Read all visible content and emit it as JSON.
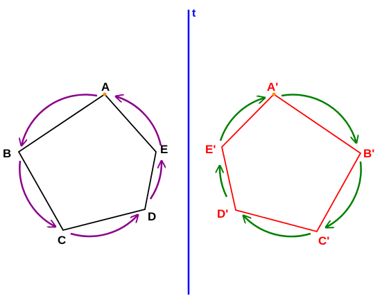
{
  "mirror_line": {
    "label": "t",
    "color": "#0000ff"
  },
  "original": {
    "color": "#000000",
    "arrow_color": "#8b008b",
    "labels": {
      "A": "A",
      "B": "B",
      "C": "C",
      "D": "D",
      "E": "E"
    }
  },
  "image": {
    "color": "#ff0000",
    "arrow_color": "#008000",
    "labels": {
      "A": "A'",
      "B": "B'",
      "C": "C'",
      "D": "D'",
      "E": "E'"
    }
  },
  "vertex_dot_color": "#ff8c00"
}
